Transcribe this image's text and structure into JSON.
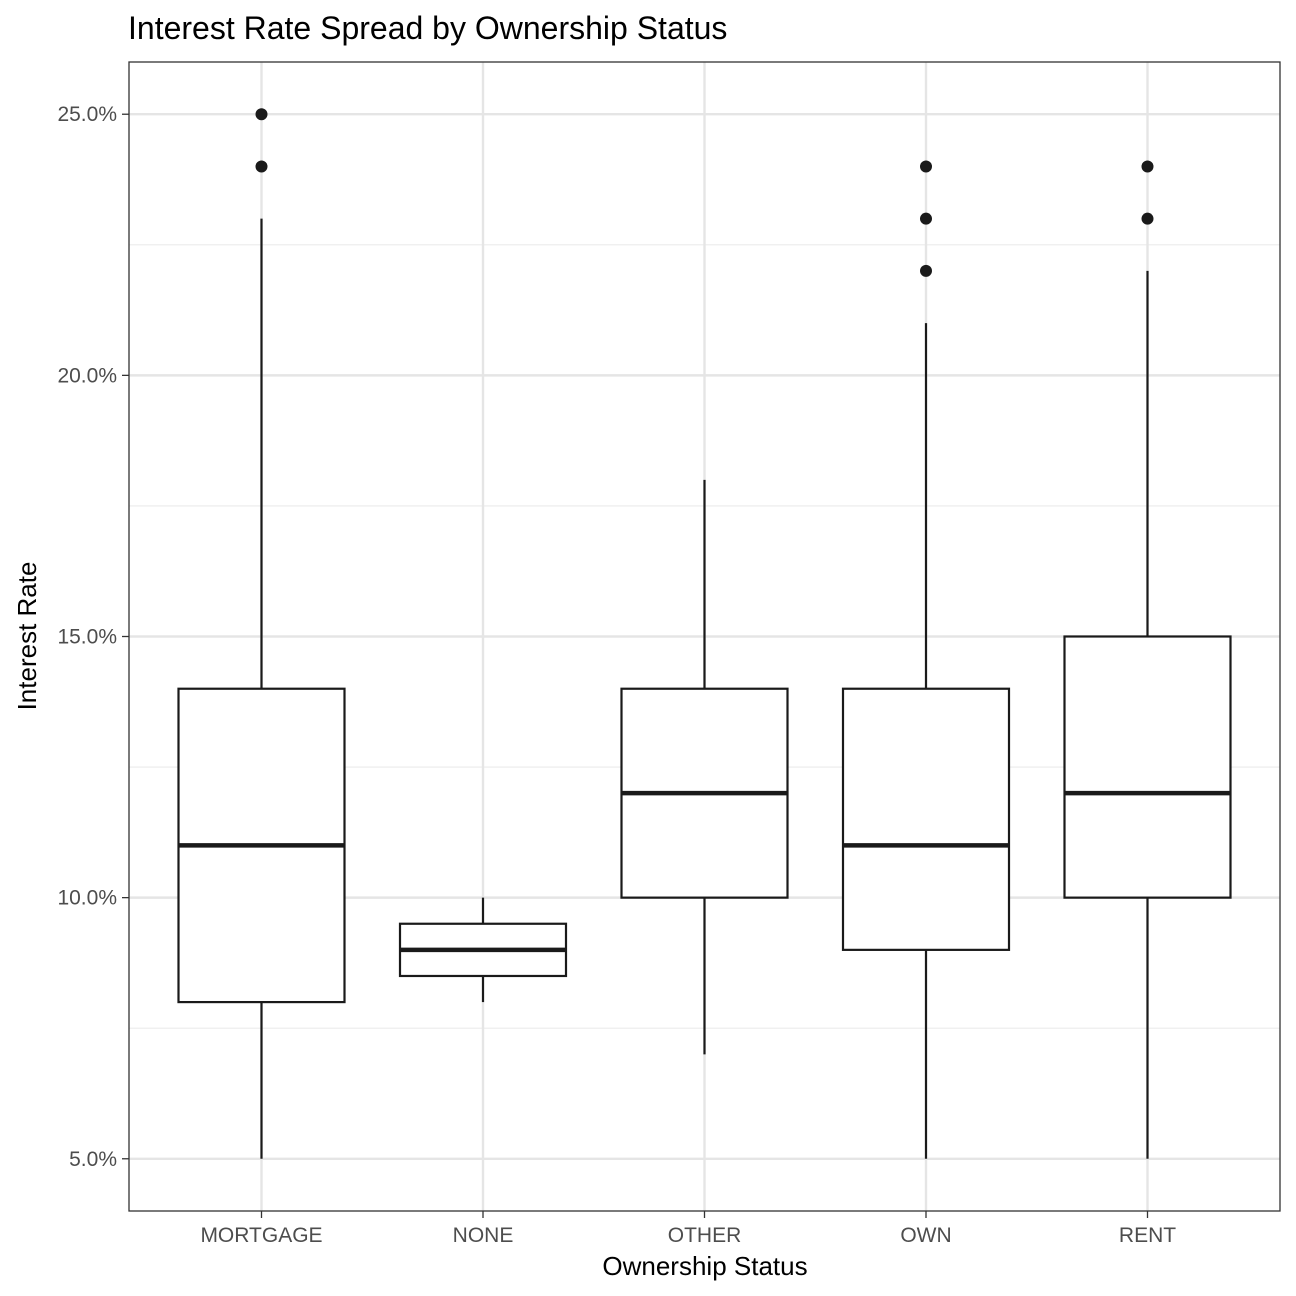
{
  "chart_data": {
    "type": "box",
    "title": "Interest Rate Spread by Ownership Status",
    "xlabel": "Ownership Status",
    "ylabel": "Interest Rate",
    "categories": [
      "MORTGAGE",
      "NONE",
      "OTHER",
      "OWN",
      "RENT"
    ],
    "ylim": [
      4.0,
      26.0
    ],
    "yticks": [
      5,
      10,
      15,
      20,
      25
    ],
    "ytick_labels": [
      "5.0%",
      "10.0%",
      "15.0%",
      "20.0%",
      "25.0%"
    ],
    "grid": true,
    "boxes": [
      {
        "category": "MORTGAGE",
        "whisker_low": 5,
        "q1": 8,
        "median": 11,
        "q3": 14,
        "whisker_high": 23,
        "outliers": [
          24,
          25
        ]
      },
      {
        "category": "NONE",
        "whisker_low": 8,
        "q1": 8.5,
        "median": 9,
        "q3": 9.5,
        "whisker_high": 10,
        "outliers": []
      },
      {
        "category": "OTHER",
        "whisker_low": 7,
        "q1": 10,
        "median": 12,
        "q3": 14,
        "whisker_high": 18,
        "outliers": []
      },
      {
        "category": "OWN",
        "whisker_low": 5,
        "q1": 9,
        "median": 11,
        "q3": 14,
        "whisker_high": 21,
        "outliers": [
          22,
          23,
          24
        ]
      },
      {
        "category": "RENT",
        "whisker_low": 5,
        "q1": 10,
        "median": 12,
        "q3": 15,
        "whisker_high": 22,
        "outliers": [
          23,
          24
        ]
      }
    ]
  }
}
